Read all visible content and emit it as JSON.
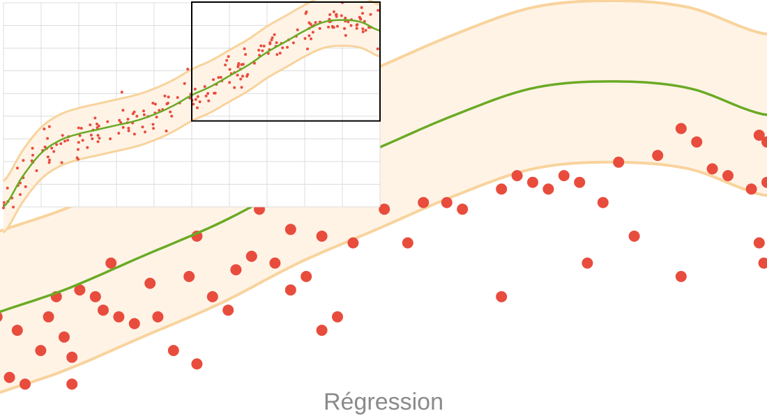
{
  "caption": "Régression",
  "colors": {
    "points": "#e84c3d",
    "fit_line": "#6aaa24",
    "band_edge": "#f8d39c",
    "band_fill": "#fff3e6",
    "grid": "#dcdcdc",
    "zoom_box": "#000000"
  },
  "chart_data": [
    {
      "type": "scatter",
      "view": "overview-inset",
      "title": "",
      "xlabel": "",
      "ylabel": "",
      "xlim": [
        0,
        10
      ],
      "ylim": [
        0,
        1
      ],
      "grid": true,
      "fit": "smooth-regression-with-confidence-band",
      "band_halfwidth": 0.12,
      "fit_curve": {
        "x": [
          0,
          0.5,
          1,
          1.5,
          2,
          2.5,
          3,
          3.5,
          4,
          4.5,
          5,
          5.5,
          6,
          6.5,
          7,
          7.5,
          8,
          8.5,
          9,
          9.5,
          10
        ],
        "y": [
          0.0,
          0.14,
          0.25,
          0.31,
          0.34,
          0.36,
          0.38,
          0.4,
          0.43,
          0.47,
          0.52,
          0.56,
          0.61,
          0.66,
          0.72,
          0.77,
          0.82,
          0.86,
          0.87,
          0.86,
          0.82
        ]
      },
      "zoom_window": {
        "xlim": [
          5,
          10
        ],
        "ylim": [
          0.4,
          0.98
        ]
      },
      "points_count": 220
    },
    {
      "type": "scatter",
      "view": "zoomed-detail",
      "title": "",
      "xlabel": "",
      "ylabel": "",
      "xlim": [
        5,
        10
      ],
      "ylim": [
        0.4,
        0.98
      ],
      "grid": false,
      "fit": "smooth-regression-with-confidence-band",
      "band_halfwidth": 0.12,
      "points": [
        [
          5.0,
          0.41
        ],
        [
          5.05,
          0.48
        ],
        [
          5.07,
          0.52
        ],
        [
          5.15,
          0.43
        ],
        [
          5.2,
          0.5
        ],
        [
          5.25,
          0.42
        ],
        [
          5.35,
          0.47
        ],
        [
          5.4,
          0.52
        ],
        [
          5.45,
          0.55
        ],
        [
          5.5,
          0.49
        ],
        [
          5.55,
          0.46
        ],
        [
          5.6,
          0.56
        ],
        [
          5.7,
          0.55
        ],
        [
          5.75,
          0.53
        ],
        [
          5.8,
          0.6
        ],
        [
          5.85,
          0.52
        ],
        [
          5.95,
          0.51
        ],
        [
          6.05,
          0.57
        ],
        [
          6.1,
          0.52
        ],
        [
          6.2,
          0.47
        ],
        [
          6.3,
          0.58
        ],
        [
          6.35,
          0.64
        ],
        [
          6.45,
          0.55
        ],
        [
          6.55,
          0.53
        ],
        [
          6.6,
          0.59
        ],
        [
          6.7,
          0.61
        ],
        [
          6.75,
          0.68
        ],
        [
          6.85,
          0.6
        ],
        [
          6.95,
          0.56
        ],
        [
          6.95,
          0.65
        ],
        [
          7.05,
          0.58
        ],
        [
          7.15,
          0.64
        ],
        [
          7.25,
          0.52
        ],
        [
          7.35,
          0.63
        ],
        [
          7.4,
          0.73
        ],
        [
          7.55,
          0.68
        ],
        [
          7.7,
          0.63
        ],
        [
          7.8,
          0.69
        ],
        [
          7.95,
          0.69
        ],
        [
          8.05,
          0.68
        ],
        [
          8.3,
          0.71
        ],
        [
          8.4,
          0.73
        ],
        [
          8.5,
          0.72
        ],
        [
          8.6,
          0.71
        ],
        [
          8.7,
          0.73
        ],
        [
          8.8,
          0.72
        ],
        [
          8.95,
          0.69
        ],
        [
          9.05,
          0.75
        ],
        [
          9.15,
          0.64
        ],
        [
          9.3,
          0.76
        ],
        [
          9.45,
          0.8
        ],
        [
          9.55,
          0.78
        ],
        [
          9.65,
          0.74
        ],
        [
          9.75,
          0.73
        ],
        [
          9.9,
          0.71
        ],
        [
          9.95,
          0.79
        ],
        [
          10.0,
          0.72
        ],
        [
          10.0,
          0.78
        ],
        [
          5.55,
          0.42
        ],
        [
          6.35,
          0.45
        ],
        [
          7.15,
          0.5
        ],
        [
          8.3,
          0.55
        ],
        [
          8.85,
          0.6
        ],
        [
          9.45,
          0.58
        ],
        [
          9.95,
          0.63
        ],
        [
          9.98,
          0.6
        ]
      ],
      "fit_curve": {
        "x": [
          5,
          5.5,
          6,
          6.5,
          7,
          7.5,
          8,
          8.5,
          9,
          9.5,
          10
        ],
        "y": [
          0.52,
          0.56,
          0.61,
          0.66,
          0.72,
          0.77,
          0.82,
          0.86,
          0.87,
          0.86,
          0.82
        ]
      }
    }
  ]
}
